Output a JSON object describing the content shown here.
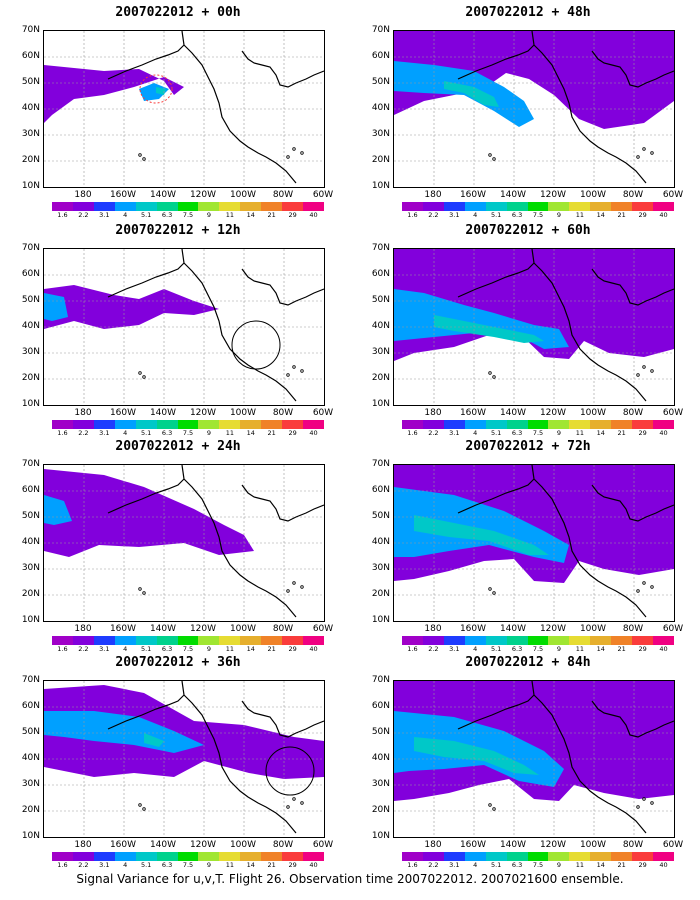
{
  "colors": [
    "#a000c8",
    "#8200dc",
    "#1e3cff",
    "#00a0ff",
    "#00c8c8",
    "#00d28c",
    "#00dc00",
    "#a0e632",
    "#e6dc32",
    "#e6af2d",
    "#f08228",
    "#fa3c3c",
    "#f00082"
  ],
  "colorbar_labels": [
    "1.6",
    "2.2",
    "3.1",
    "4",
    "5.1",
    "6.3",
    "7.5",
    "9",
    "11",
    "14",
    "21",
    "29",
    "40"
  ],
  "lat_labels": [
    "70N",
    "60N",
    "50N",
    "40N",
    "30N",
    "20N",
    "10N"
  ],
  "lon_labels": [
    "180",
    "160W",
    "140W",
    "120W",
    "100W",
    "80W",
    "60W"
  ],
  "footer": "Signal Variance for u,v,T. Flight 26. Observation time 2007022012. 2007021600 ensemble.",
  "panels": [
    {
      "title": "2007022012 + 00h"
    },
    {
      "title": "2007022012 + 48h"
    },
    {
      "title": "2007022012 + 12h"
    },
    {
      "title": "2007022012 + 60h"
    },
    {
      "title": "2007022012 + 24h"
    },
    {
      "title": "2007022012 + 72h"
    },
    {
      "title": "2007022012 + 36h"
    },
    {
      "title": "2007022012 + 84h"
    }
  ]
}
